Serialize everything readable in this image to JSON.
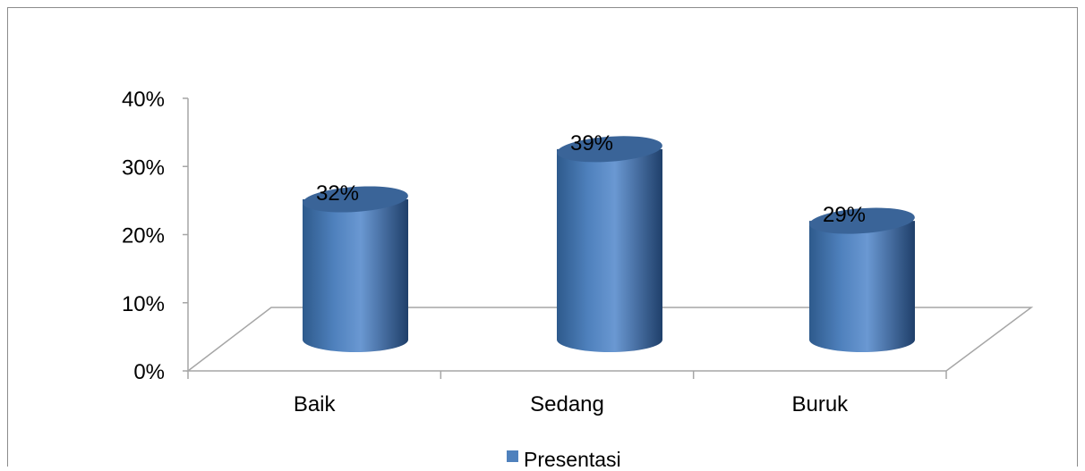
{
  "chart_data": {
    "type": "bar",
    "style": "3d-cylinder",
    "categories": [
      "Baik",
      "Sedang",
      "Buruk"
    ],
    "series": [
      {
        "name": "Presentasi",
        "values": [
          0.32,
          0.39,
          0.29
        ],
        "color": "#4F81BD"
      }
    ],
    "data_labels": [
      "32%",
      "39%",
      "29%"
    ],
    "y_ticks": [
      "0%",
      "10%",
      "20%",
      "30%",
      "40%"
    ],
    "ylim": [
      0,
      0.4
    ],
    "grid": false,
    "legend_position": "bottom"
  }
}
